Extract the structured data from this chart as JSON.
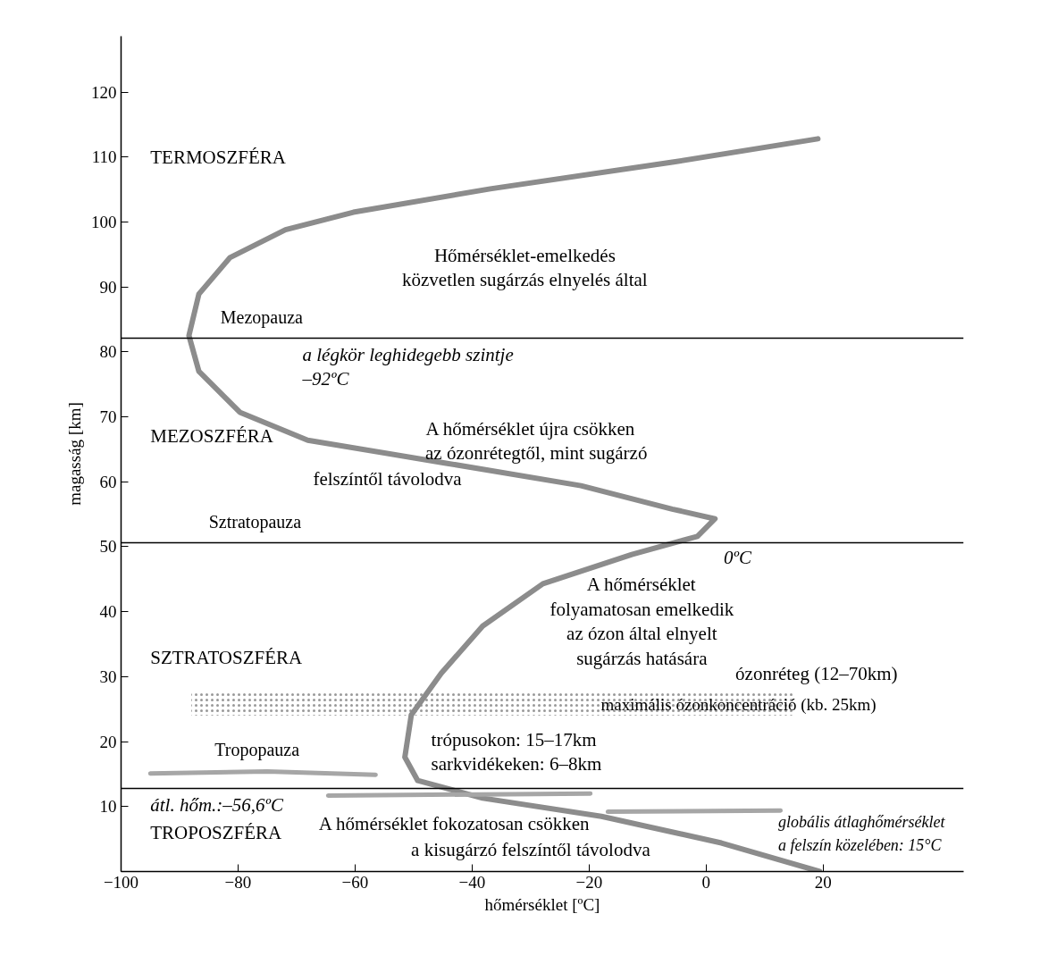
{
  "chart_data": {
    "type": "line",
    "xlabel": "hőmérséklet [ºC]",
    "ylabel": "magasság [km]",
    "xlim": [
      -100,
      44
    ],
    "ylim": [
      0,
      128.6
    ],
    "xticks": [
      -100,
      -80,
      -60,
      -40,
      -20,
      0,
      20
    ],
    "yticks": [
      10,
      20,
      30,
      40,
      50,
      60,
      70,
      80,
      90,
      100,
      110,
      120
    ],
    "grid": false,
    "marker": "none",
    "line_style": "solid",
    "series": [
      {
        "color": "#8c8c8c",
        "x": [
          19.4,
          2.6,
          -17.9,
          -38.2,
          -49.3,
          -51.5,
          -50.4,
          -45.3,
          -38.2,
          -27.9,
          -12.7,
          -1.5,
          1.5,
          -5.8,
          -21.4,
          -44.7,
          -68.1,
          -79.7,
          -86.7,
          -88.4,
          -86.7,
          -81.4,
          -71.9,
          -60.3,
          -36.9,
          -5.8,
          19.1
        ],
        "values": [
          0,
          4.4,
          8.5,
          11.3,
          14.0,
          17.6,
          24.1,
          30.5,
          37.8,
          44.3,
          48.8,
          51.6,
          54.3,
          55.8,
          59.4,
          62.9,
          66.4,
          70.7,
          77.0,
          82.5,
          88.9,
          94.5,
          98.8,
          101.5,
          105.1,
          109.2,
          112.8
        ]
      },
      {
        "color": "#a6a6a6",
        "x": [
          -95,
          -75,
          -56.5,
          null,
          -64.6,
          -19.8,
          null,
          -16.8,
          12.7
        ],
        "values": [
          15.1,
          15.4,
          14.9,
          null,
          11.7,
          12.0,
          null,
          9.2,
          9.4
        ]
      }
    ],
    "ref_lines": [
      {
        "axis": "y",
        "value": 82.1,
        "label": "Mezopauza",
        "color": "#000000"
      },
      {
        "axis": "y",
        "value": 50.6,
        "label": "Sztratopauza",
        "color": "#000000"
      },
      {
        "axis": "y",
        "value": 12.8,
        "label": "Tropopauza",
        "color": "#000000"
      }
    ],
    "bands": [
      {
        "axis": "y",
        "from": 24,
        "to": 27.5,
        "label": "maximális ózonkoncentráció (kb. 25km)",
        "color": "#999999"
      }
    ],
    "annotations": [
      "TERMOSZFÉRA",
      "Hőmérséklet-emelkedés\nközvetlen sugárzás elnyelés által",
      "a légkör leghidegebb szintje\n–92ºC",
      "MEZOSZFÉRA",
      "A hőmérséklet újra csökken\naz ózonrétegtől, mint sugárzó\nfelszíntől  távolodva",
      "0ºC",
      "A hőmérséklet\nfolyamatosan emelkedik\naz ózon által elnyelt\nsugárzás hatására",
      "SZTRATOSZFÉRA",
      "ózonréteg (12–70km)",
      "trópusokon: 15–17km\nsarkvidékeken: 6–8km",
      "átl. hőm.:–56,6ºC",
      "TROPOSZFÉRA",
      "A hőmérséklet fokozatosan csökken\na kisugárzó felszíntől távolodva",
      "globális átlaghőmérséklet\na felszín közelében: 15°C"
    ]
  }
}
